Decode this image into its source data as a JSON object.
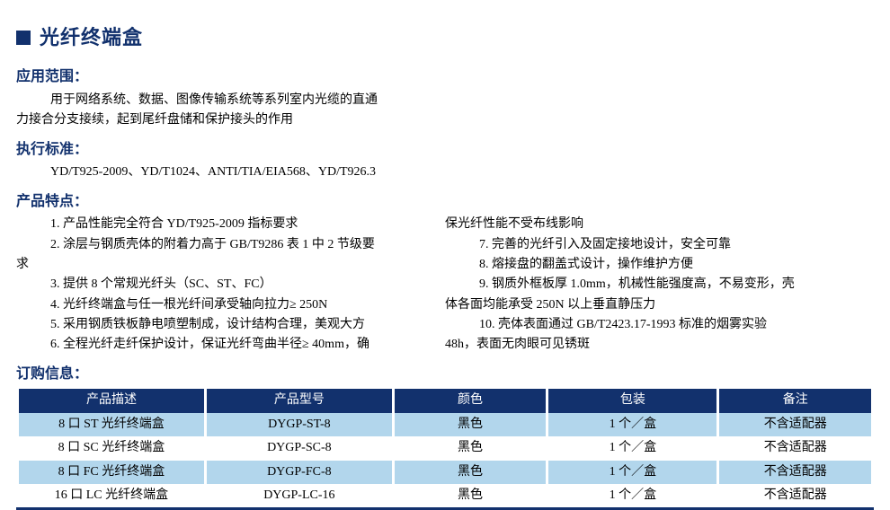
{
  "title": "光纤终端盒",
  "sections": {
    "scope": {
      "heading": "应用范围：",
      "line1": "用于网络系统、数据、图像传输系统等系列室内光缆的直通",
      "line2": "力接合分支接续，起到尾纤盘储和保护接头的作用"
    },
    "standards": {
      "heading": "执行标准：",
      "text": "YD/T925-2009、YD/T1024、ANTI/TIA/EIA568、YD/T926.3"
    },
    "features": {
      "heading": "产品特点：",
      "left": [
        "1. 产品性能完全符合 YD/T925-2009 指标要求",
        "2. 涂层与钢质壳体的附着力高于 GB/T9286 表 1 中 2 节级要",
        "求",
        "3. 提供 8 个常规光纤头（SC、ST、FC）",
        "4. 光纤终端盒与任一根光纤间承受轴向拉力≥ 250N",
        "5. 采用钢质铁板静电喷塑制成，设计结构合理，美观大方",
        "6. 全程光纤走纤保护设计，保证光纤弯曲半径≥ 40mm，确"
      ],
      "right": [
        "保光纤性能不受布线影响",
        "7. 完善的光纤引入及固定接地设计，安全可靠",
        "8. 熔接盘的翻盖式设计，操作维护方便",
        "9. 钢质外框板厚 1.0mm，机械性能强度高，不易变形，壳",
        "体各面均能承受 250N 以上垂直静压力",
        "10. 壳体表面通过 GB/T2423.17-1993 标准的烟雾实验",
        "48h，表面无肉眼可见锈斑"
      ]
    },
    "order": {
      "heading": "订购信息：",
      "columns": [
        "产品描述",
        "产品型号",
        "颜色",
        "包装",
        "备注"
      ],
      "col_widths": [
        "22%",
        "22%",
        "18%",
        "20%",
        "18%"
      ],
      "rows": [
        [
          "8 口 ST 光纤终端盒",
          "DYGP-ST-8",
          "黑色",
          "1 个／盒",
          "不含适配器"
        ],
        [
          "8 口 SC 光纤终端盒",
          "DYGP-SC-8",
          "黑色",
          "1 个／盒",
          "不含适配器"
        ],
        [
          "8 口 FC 光纤终端盒",
          "DYGP-FC-8",
          "黑色",
          "1 个／盒",
          "不含适配器"
        ],
        [
          "16 口 LC 光纤终端盒",
          "DYGP-LC-16",
          "黑色",
          "1 个／盒",
          "不含适配器"
        ]
      ]
    }
  },
  "colors": {
    "primary": "#12316d",
    "row_stripe": "#b2d6ec",
    "white": "#ffffff",
    "text": "#000000"
  }
}
